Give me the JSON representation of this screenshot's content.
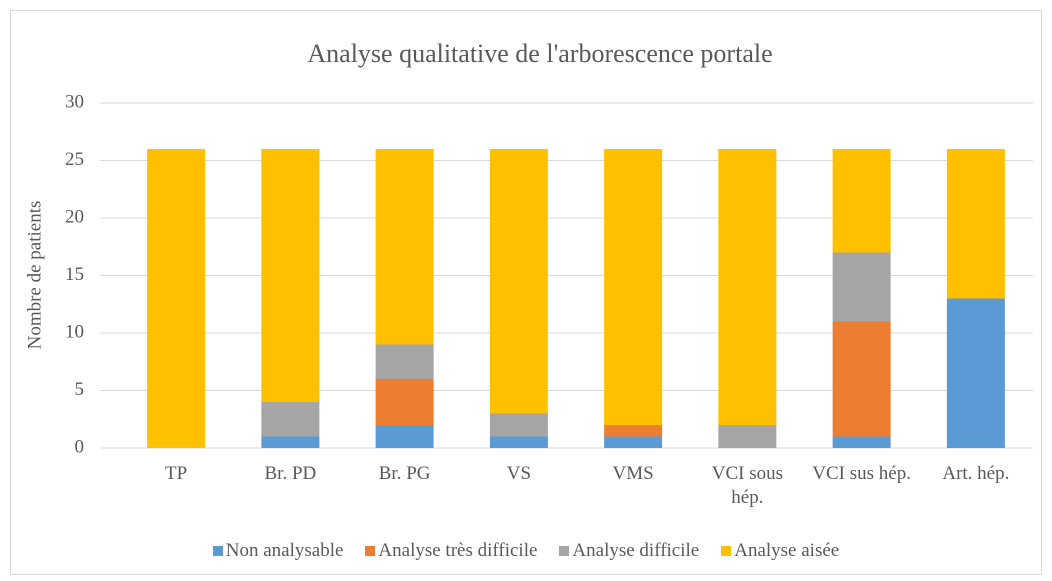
{
  "chart_data": {
    "type": "stacked_bar",
    "title": "Analyse qualitative de l'arborescence portale",
    "ylabel": "Nombre de patients",
    "categories": [
      "TP",
      "Br. PD",
      "Br. PG",
      "VS",
      "VMS",
      "VCI sous hép.",
      "VCI sus hép.",
      "Art. hép."
    ],
    "series": [
      {
        "name": "Non analysable",
        "color": "#5b9bd5",
        "values": [
          0,
          1,
          2,
          1,
          1,
          0,
          1,
          13
        ]
      },
      {
        "name": "Analyse très difficile",
        "color": "#ed7d31",
        "values": [
          0,
          0,
          4,
          0,
          1,
          0,
          10,
          0
        ]
      },
      {
        "name": "Analyse difficile",
        "color": "#a5a5a5",
        "values": [
          0,
          3,
          3,
          2,
          0,
          2,
          6,
          0
        ]
      },
      {
        "name": "Analyse aisée",
        "color": "#ffc000",
        "values": [
          26,
          22,
          17,
          23,
          24,
          24,
          9,
          13
        ]
      }
    ],
    "ylim": [
      0,
      30
    ],
    "yticks": [
      0,
      5,
      10,
      15,
      20,
      25,
      30
    ],
    "grid": true,
    "legend": "bottom"
  }
}
